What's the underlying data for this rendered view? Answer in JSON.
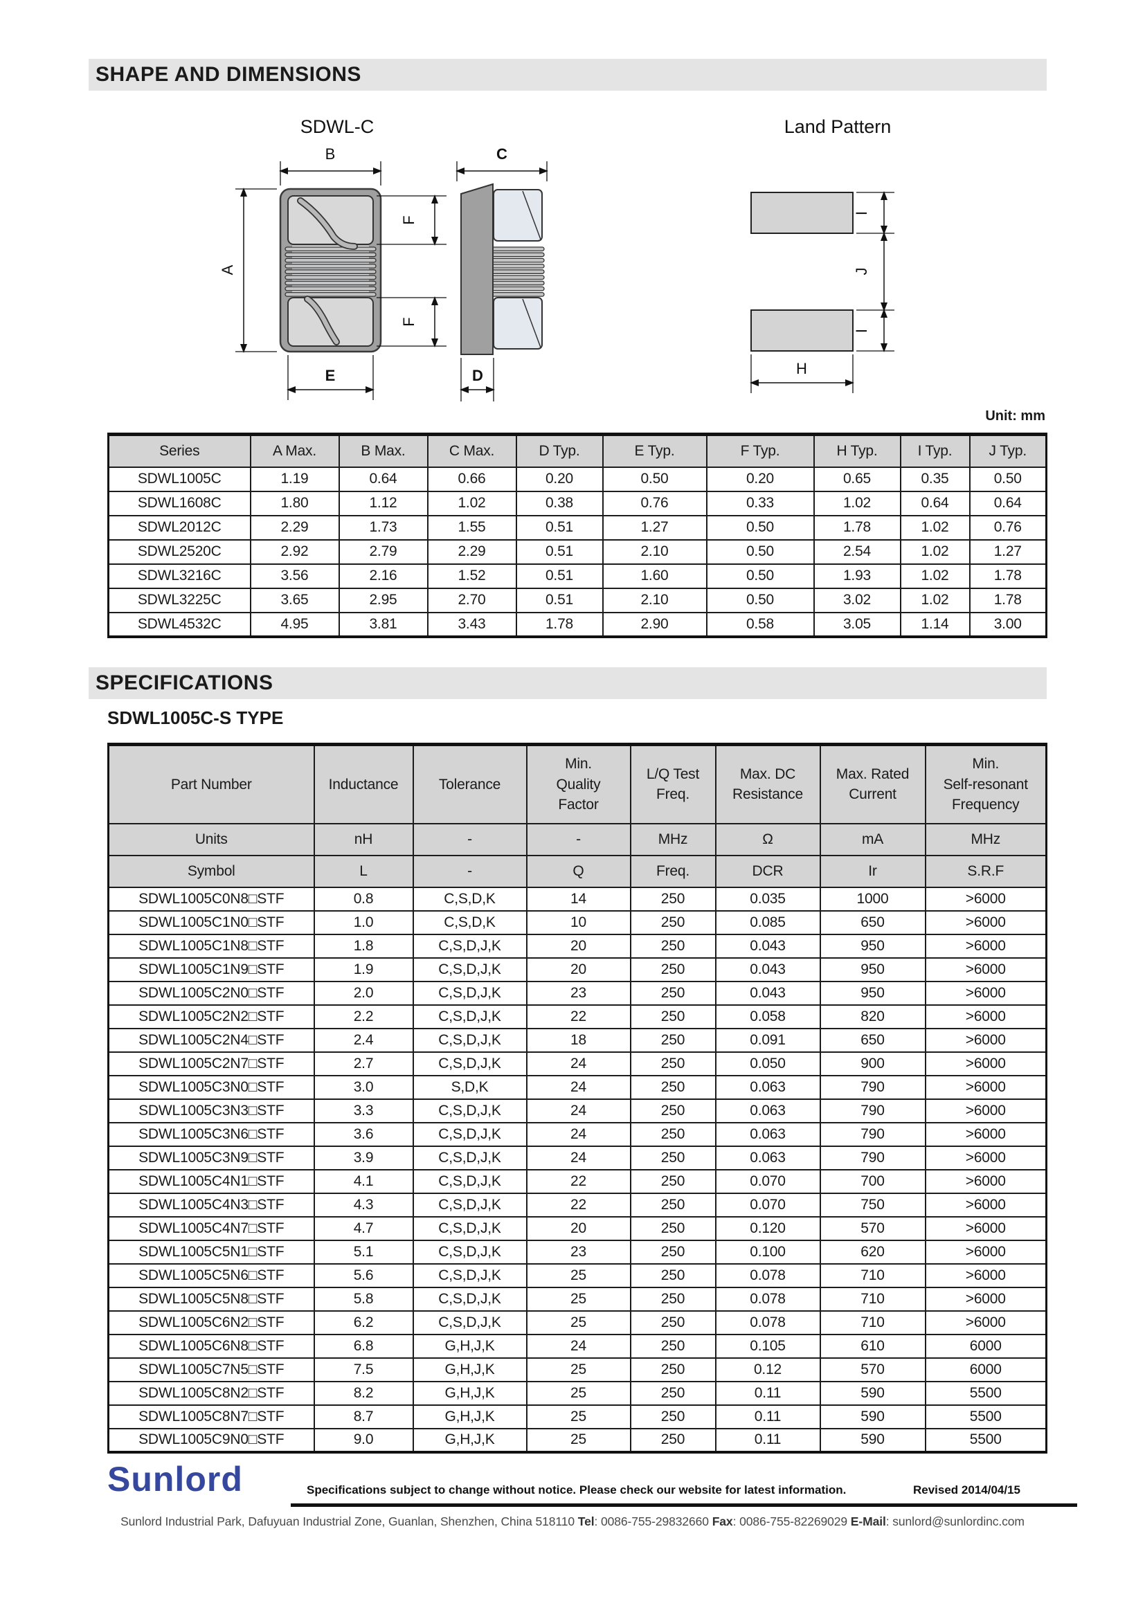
{
  "sections": {
    "shape_title": "SHAPE AND DIMENSIONS",
    "spec_title": "SPECIFICATIONS",
    "spec_subtitle": "SDWL1005C-S TYPE",
    "unit_note": "Unit: mm"
  },
  "diagram": {
    "title_left": "SDWL-C",
    "title_right": "Land Pattern",
    "labels": {
      "a": "A",
      "b": "B",
      "c": "C",
      "d": "D",
      "e": "E",
      "f": "F",
      "h": "H",
      "i": "I",
      "j": "J"
    }
  },
  "dimensions_table": {
    "headers": [
      "Series",
      "A Max.",
      "B Max.",
      "C Max.",
      "D Typ.",
      "E Typ.",
      "F Typ.",
      "H Typ.",
      "I Typ.",
      "J Typ."
    ],
    "rows": [
      [
        "SDWL1005C",
        "1.19",
        "0.64",
        "0.66",
        "0.20",
        "0.50",
        "0.20",
        "0.65",
        "0.35",
        "0.50"
      ],
      [
        "SDWL1608C",
        "1.80",
        "1.12",
        "1.02",
        "0.38",
        "0.76",
        "0.33",
        "1.02",
        "0.64",
        "0.64"
      ],
      [
        "SDWL2012C",
        "2.29",
        "1.73",
        "1.55",
        "0.51",
        "1.27",
        "0.50",
        "1.78",
        "1.02",
        "0.76"
      ],
      [
        "SDWL2520C",
        "2.92",
        "2.79",
        "2.29",
        "0.51",
        "2.10",
        "0.50",
        "2.54",
        "1.02",
        "1.27"
      ],
      [
        "SDWL3216C",
        "3.56",
        "2.16",
        "1.52",
        "0.51",
        "1.60",
        "0.50",
        "1.93",
        "1.02",
        "1.78"
      ],
      [
        "SDWL3225C",
        "3.65",
        "2.95",
        "2.70",
        "0.51",
        "2.10",
        "0.50",
        "3.02",
        "1.02",
        "1.78"
      ],
      [
        "SDWL4532C",
        "4.95",
        "3.81",
        "3.43",
        "1.78",
        "2.90",
        "0.58",
        "3.05",
        "1.14",
        "3.00"
      ]
    ]
  },
  "spec_table": {
    "headers": [
      "Part Number",
      "Inductance",
      "Tolerance",
      "Min.\nQuality\nFactor",
      "L/Q Test\nFreq.",
      "Max. DC\nResistance",
      "Max. Rated\nCurrent",
      "Min.\nSelf-resonant\nFrequency"
    ],
    "units_row": [
      "Units",
      "nH",
      "-",
      "-",
      "MHz",
      "Ω",
      "mA",
      "MHz"
    ],
    "symbol_row": [
      "Symbol",
      "L",
      "-",
      "Q",
      "Freq.",
      "DCR",
      "Ir",
      "S.R.F"
    ],
    "rows": [
      [
        "SDWL1005C0N8□STF",
        "0.8",
        "C,S,D,K",
        "14",
        "250",
        "0.035",
        "1000",
        ">6000"
      ],
      [
        "SDWL1005C1N0□STF",
        "1.0",
        "C,S,D,K",
        "10",
        "250",
        "0.085",
        "650",
        ">6000"
      ],
      [
        "SDWL1005C1N8□STF",
        "1.8",
        "C,S,D,J,K",
        "20",
        "250",
        "0.043",
        "950",
        ">6000"
      ],
      [
        "SDWL1005C1N9□STF",
        "1.9",
        "C,S,D,J,K",
        "20",
        "250",
        "0.043",
        "950",
        ">6000"
      ],
      [
        "SDWL1005C2N0□STF",
        "2.0",
        "C,S,D,J,K",
        "23",
        "250",
        "0.043",
        "950",
        ">6000"
      ],
      [
        "SDWL1005C2N2□STF",
        "2.2",
        "C,S,D,J,K",
        "22",
        "250",
        "0.058",
        "820",
        ">6000"
      ],
      [
        "SDWL1005C2N4□STF",
        "2.4",
        "C,S,D,J,K",
        "18",
        "250",
        "0.091",
        "650",
        ">6000"
      ],
      [
        "SDWL1005C2N7□STF",
        "2.7",
        "C,S,D,J,K",
        "24",
        "250",
        "0.050",
        "900",
        ">6000"
      ],
      [
        "SDWL1005C3N0□STF",
        "3.0",
        "S,D,K",
        "24",
        "250",
        "0.063",
        "790",
        ">6000"
      ],
      [
        "SDWL1005C3N3□STF",
        "3.3",
        "C,S,D,J,K",
        "24",
        "250",
        "0.063",
        "790",
        ">6000"
      ],
      [
        "SDWL1005C3N6□STF",
        "3.6",
        "C,S,D,J,K",
        "24",
        "250",
        "0.063",
        "790",
        ">6000"
      ],
      [
        "SDWL1005C3N9□STF",
        "3.9",
        "C,S,D,J,K",
        "24",
        "250",
        "0.063",
        "790",
        ">6000"
      ],
      [
        "SDWL1005C4N1□STF",
        "4.1",
        "C,S,D,J,K",
        "22",
        "250",
        "0.070",
        "700",
        ">6000"
      ],
      [
        "SDWL1005C4N3□STF",
        "4.3",
        "C,S,D,J,K",
        "22",
        "250",
        "0.070",
        "750",
        ">6000"
      ],
      [
        "SDWL1005C4N7□STF",
        "4.7",
        "C,S,D,J,K",
        "20",
        "250",
        "0.120",
        "570",
        ">6000"
      ],
      [
        "SDWL1005C5N1□STF",
        "5.1",
        "C,S,D,J,K",
        "23",
        "250",
        "0.100",
        "620",
        ">6000"
      ],
      [
        "SDWL1005C5N6□STF",
        "5.6",
        "C,S,D,J,K",
        "25",
        "250",
        "0.078",
        "710",
        ">6000"
      ],
      [
        "SDWL1005C5N8□STF",
        "5.8",
        "C,S,D,J,K",
        "25",
        "250",
        "0.078",
        "710",
        ">6000"
      ],
      [
        "SDWL1005C6N2□STF",
        "6.2",
        "C,S,D,J,K",
        "25",
        "250",
        "0.078",
        "710",
        ">6000"
      ],
      [
        "SDWL1005C6N8□STF",
        "6.8",
        "G,H,J,K",
        "24",
        "250",
        "0.105",
        "610",
        "6000"
      ],
      [
        "SDWL1005C7N5□STF",
        "7.5",
        "G,H,J,K",
        "25",
        "250",
        "0.12",
        "570",
        "6000"
      ],
      [
        "SDWL1005C8N2□STF",
        "8.2",
        "G,H,J,K",
        "25",
        "250",
        "0.11",
        "590",
        "5500"
      ],
      [
        "SDWL1005C8N7□STF",
        "8.7",
        "G,H,J,K",
        "25",
        "250",
        "0.11",
        "590",
        "5500"
      ],
      [
        "SDWL1005C9N0□STF",
        "9.0",
        "G,H,J,K",
        "25",
        "250",
        "0.11",
        "590",
        "5500"
      ]
    ]
  },
  "footer": {
    "logo_text": "Sunlord",
    "logo_color": "#36489e",
    "notice": "Specifications subject to change without notice. Please check our website for latest information.",
    "revised": "Revised 2014/04/15",
    "address": "Sunlord Industrial Park, Dafuyuan Industrial Zone, Guanlan, Shenzhen, China 518110 ",
    "tel_label": "Tel",
    "tel_value": ": 0086-755-29832660 ",
    "fax_label": "Fax",
    "fax_value": ": 0086-755-82269029 ",
    "email_label": "E-Mail",
    "email_value": ": sunlord@sunlordinc.com"
  }
}
